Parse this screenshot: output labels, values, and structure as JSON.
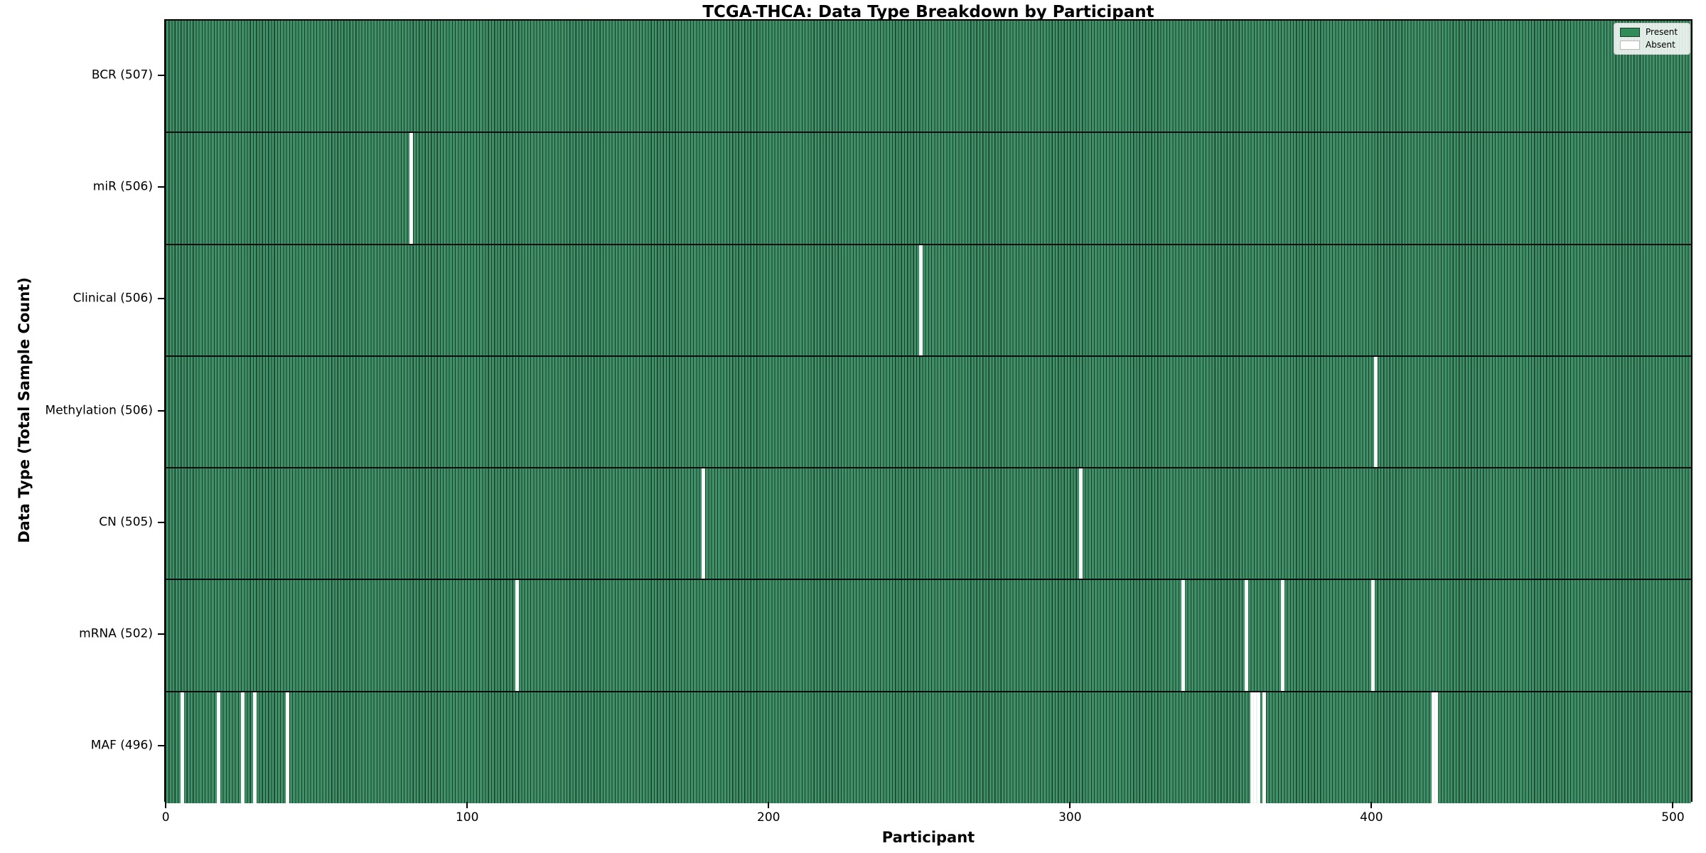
{
  "title": "TCGA-THCA: Data Type Breakdown by Participant",
  "chart_data": {
    "type": "heatmap",
    "title": "TCGA-THCA: Data Type Breakdown by Participant",
    "xlabel": "Participant",
    "ylabel": "Data Type (Total Sample Count)",
    "n_participants": 507,
    "x_ticks": [
      0,
      100,
      200,
      300,
      400,
      500
    ],
    "xlim": [
      0,
      507
    ],
    "grid": false,
    "legend_position": "upper right",
    "colors": {
      "present": "#2f8b58",
      "present_fill": "#3e9168",
      "bar_edge": "#1c3c2a",
      "absent": "#ffffff",
      "row_divider": "#0d0d0d"
    },
    "legend": [
      {
        "label": "Present",
        "color": "#2f8b58"
      },
      {
        "label": "Absent",
        "color": "#ffffff"
      }
    ],
    "rows": [
      {
        "label": "BCR (507)",
        "data_type": "BCR",
        "present_count": 507,
        "absent_participants": []
      },
      {
        "label": "miR (506)",
        "data_type": "miR",
        "present_count": 506,
        "absent_participants": [
          81
        ]
      },
      {
        "label": "Clinical (506)",
        "data_type": "Clinical",
        "present_count": 506,
        "absent_participants": [
          250
        ]
      },
      {
        "label": "Methylation (506)",
        "data_type": "Methylation",
        "present_count": 506,
        "absent_participants": [
          401
        ]
      },
      {
        "label": "CN (505)",
        "data_type": "CN",
        "present_count": 505,
        "absent_participants": [
          178,
          303
        ]
      },
      {
        "label": "mRNA (502)",
        "data_type": "mRNA",
        "present_count": 502,
        "absent_participants": [
          116,
          337,
          358,
          370,
          400
        ]
      },
      {
        "label": "MAF (496)",
        "data_type": "MAF",
        "present_count": 496,
        "absent_participants": [
          5,
          17,
          25,
          29,
          40,
          360,
          361,
          362,
          364,
          420,
          421
        ]
      }
    ]
  }
}
